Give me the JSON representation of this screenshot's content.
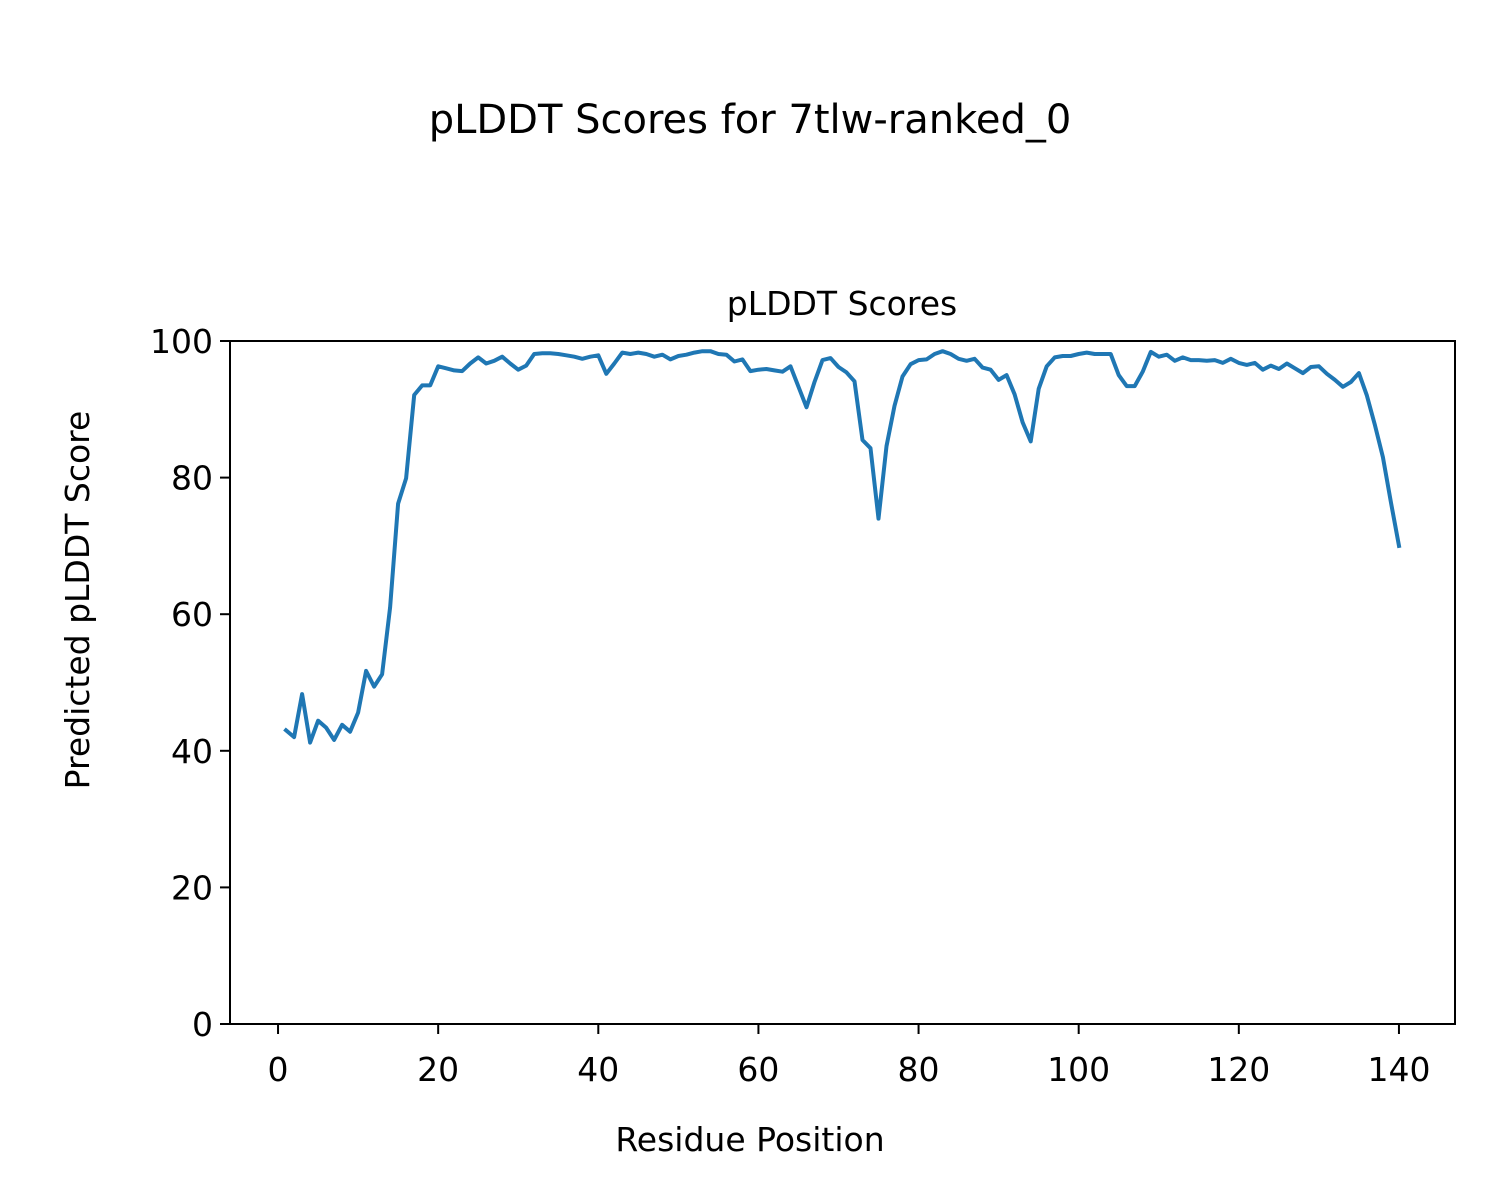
{
  "figure": {
    "suptitle": "pLDDT Scores for 7tlw-ranked_0"
  },
  "chart_data": {
    "type": "line",
    "title": "pLDDT Scores",
    "xlabel": "Residue Position",
    "ylabel": "Predicted pLDDT Score",
    "xlim": [
      -6,
      147
    ],
    "ylim": [
      0,
      100
    ],
    "xticks": [
      0,
      20,
      40,
      60,
      80,
      100,
      120,
      140
    ],
    "yticks": [
      0,
      20,
      40,
      60,
      80,
      100
    ],
    "grid": false,
    "legend": "none",
    "series": [
      {
        "color": "#1f77b4",
        "x": [
          1,
          2,
          3,
          4,
          5,
          6,
          7,
          8,
          9,
          10,
          11,
          12,
          13,
          14,
          15,
          16,
          17,
          18,
          19,
          20,
          21,
          22,
          23,
          24,
          25,
          26,
          27,
          28,
          29,
          30,
          31,
          32,
          33,
          34,
          35,
          36,
          37,
          38,
          39,
          40,
          41,
          42,
          43,
          44,
          45,
          46,
          47,
          48,
          49,
          50,
          51,
          52,
          53,
          54,
          55,
          56,
          57,
          58,
          59,
          60,
          61,
          62,
          63,
          64,
          65,
          66,
          67,
          68,
          69,
          70,
          71,
          72,
          73,
          74,
          75,
          76,
          77,
          78,
          79,
          80,
          81,
          82,
          83,
          84,
          85,
          86,
          87,
          88,
          89,
          90,
          91,
          92,
          93,
          94,
          95,
          96,
          97,
          98,
          99,
          100,
          101,
          102,
          103,
          104,
          105,
          106,
          107,
          108,
          109,
          110,
          111,
          112,
          113,
          114,
          115,
          116,
          117,
          118,
          119,
          120,
          121,
          122,
          123,
          124,
          125,
          126,
          127,
          128,
          129,
          130,
          131,
          132,
          133,
          134,
          135,
          136,
          137,
          138,
          139,
          140
        ],
        "y": [
          43.0,
          42.0,
          48.3,
          41.2,
          44.4,
          43.4,
          41.6,
          43.8,
          42.8,
          45.6,
          51.7,
          49.4,
          51.2,
          61.0,
          76.2,
          79.9,
          92.1,
          93.5,
          93.5,
          96.3,
          96.0,
          95.7,
          95.6,
          96.7,
          97.6,
          96.7,
          97.1,
          97.7,
          96.7,
          95.8,
          96.4,
          98.1,
          98.2,
          98.2,
          98.1,
          97.9,
          97.7,
          97.4,
          97.7,
          97.9,
          95.2,
          96.7,
          98.3,
          98.1,
          98.3,
          98.1,
          97.7,
          98.0,
          97.3,
          97.8,
          98.0,
          98.3,
          98.5,
          98.5,
          98.1,
          98.0,
          97.0,
          97.3,
          95.6,
          95.8,
          95.9,
          95.7,
          95.5,
          96.3,
          93.3,
          90.3,
          94.0,
          97.2,
          97.5,
          96.2,
          95.4,
          94.1,
          85.5,
          84.3,
          74.0,
          84.6,
          90.5,
          94.8,
          96.6,
          97.2,
          97.3,
          98.1,
          98.5,
          98.1,
          97.4,
          97.1,
          97.4,
          96.1,
          95.8,
          94.3,
          95.0,
          92.2,
          88.1,
          85.3,
          93.0,
          96.3,
          97.6,
          97.8,
          97.8,
          98.1,
          98.3,
          98.1,
          98.1,
          98.1,
          95.0,
          93.4,
          93.4,
          95.5,
          98.4,
          97.7,
          98.0,
          97.1,
          97.6,
          97.2,
          97.2,
          97.1,
          97.2,
          96.8,
          97.4,
          96.8,
          96.5,
          96.8,
          95.8,
          96.4,
          95.9,
          96.7,
          96.0,
          95.3,
          96.2,
          96.3,
          95.2,
          94.3,
          93.3,
          94.0,
          95.3,
          92.0,
          87.7,
          83.0,
          76.4,
          70.0
        ]
      }
    ]
  }
}
